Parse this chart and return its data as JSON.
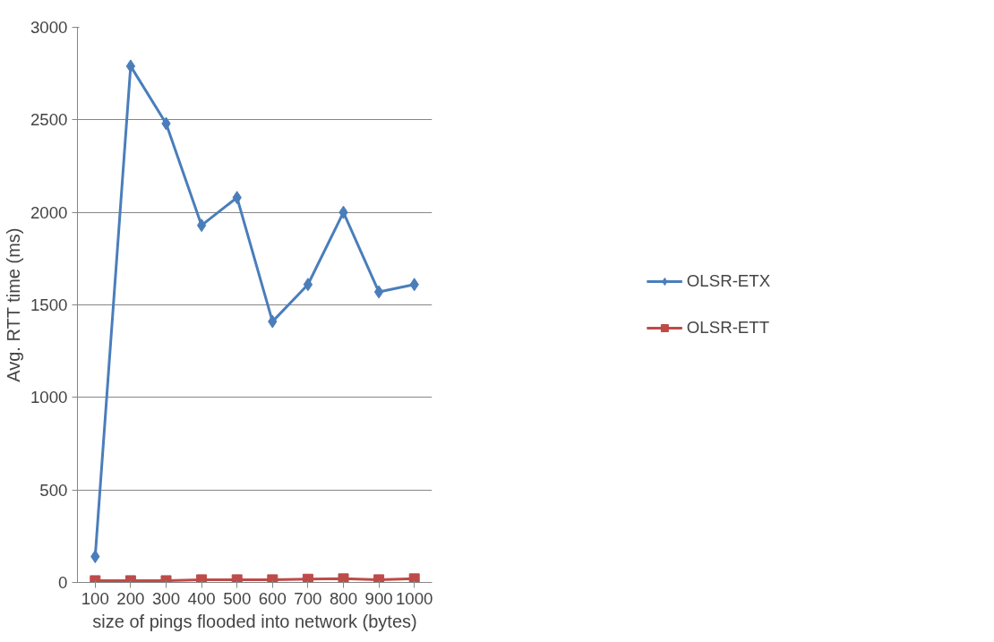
{
  "chart_data": {
    "type": "line",
    "xlabel": "size of pings flooded into network (bytes)",
    "ylabel": "Avg. RTT time (ms)",
    "categories": [
      "100",
      "200",
      "300",
      "400",
      "500",
      "600",
      "700",
      "800",
      "900",
      "1000"
    ],
    "ylim": [
      0,
      3000
    ],
    "yticks": [
      0,
      500,
      1000,
      1500,
      2000,
      2500,
      3000
    ],
    "grid": "y",
    "legend": "right",
    "series": [
      {
        "name": "OLSR-ETX",
        "color": "#4a7ebb",
        "marker": "diamond",
        "values": [
          140,
          2790,
          2480,
          1930,
          2080,
          1410,
          1610,
          2000,
          1570,
          1610
        ]
      },
      {
        "name": "OLSR-ETT",
        "color": "#be4b48",
        "marker": "square",
        "values": [
          10,
          10,
          10,
          15,
          15,
          15,
          18,
          20,
          15,
          20
        ]
      }
    ]
  }
}
